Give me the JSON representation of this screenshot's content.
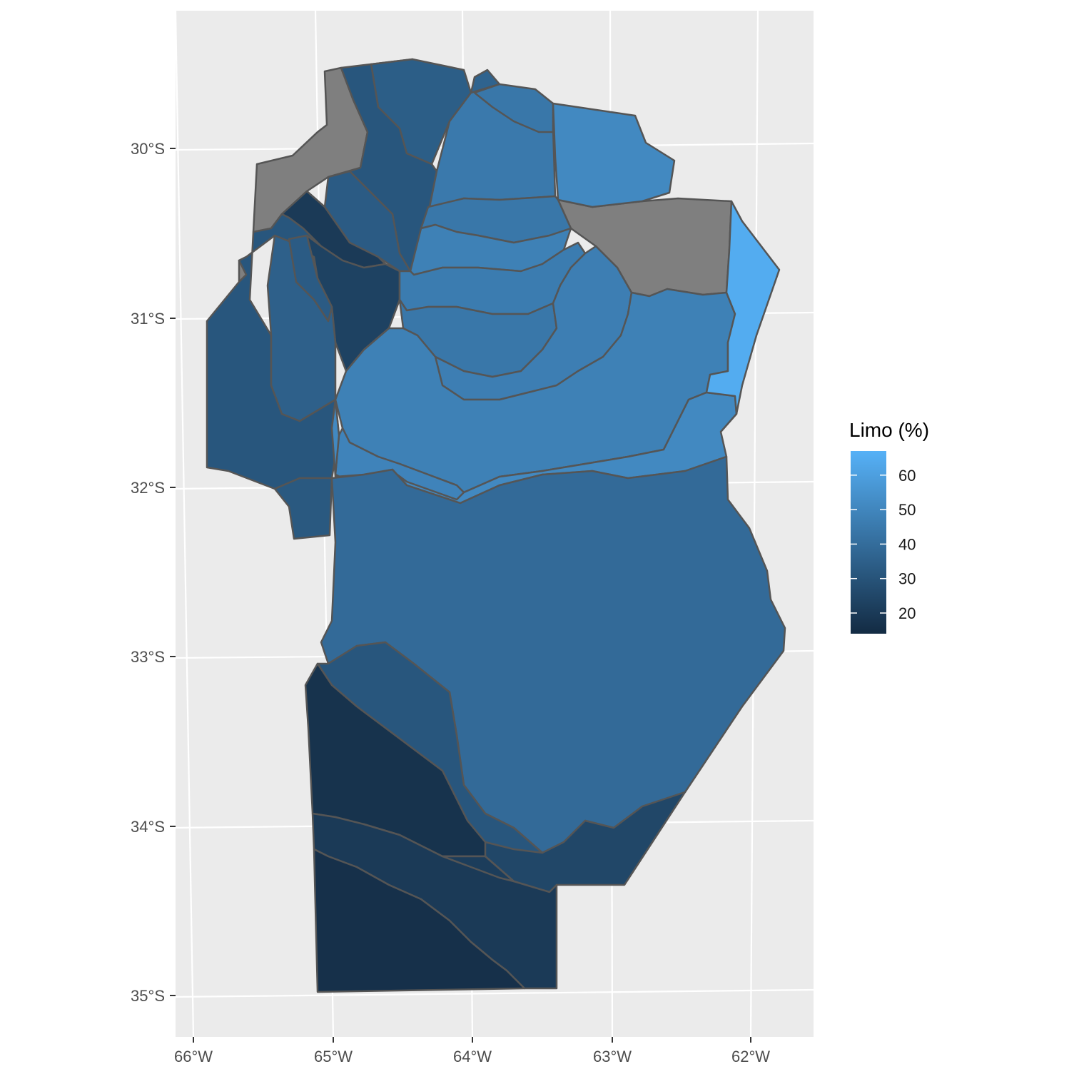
{
  "map": {
    "type": "choropleth",
    "colors": {
      "panel_background": "#EBEBEB",
      "gridline": "#FFFFFF",
      "region_border": "#555555",
      "no_data": "#7F7F7F",
      "scale_low": "#132B43",
      "scale_high": "#56B1F7"
    },
    "axis": {
      "y_ticks": [
        "30°S",
        "31°S",
        "32°S",
        "33°S",
        "34°S",
        "35°S"
      ],
      "x_ticks": [
        "66°W",
        "65°W",
        "64°W",
        "63°W",
        "62°W"
      ]
    },
    "legend": {
      "title": "Limo (%)",
      "position": "right",
      "range": [
        14,
        67
      ],
      "breaks": [
        20,
        30,
        40,
        50,
        60
      ],
      "break_labels": [
        "20",
        "30",
        "40",
        "50",
        "60"
      ]
    },
    "regions": [
      {
        "id": "r01",
        "limo": null
      },
      {
        "id": "r02",
        "limo": null
      },
      {
        "id": "r03",
        "limo": null
      },
      {
        "id": "r04",
        "limo": 15
      },
      {
        "id": "r05",
        "limo": 34
      },
      {
        "id": "r06",
        "limo": 31
      },
      {
        "id": "r07",
        "limo": 36
      },
      {
        "id": "r08",
        "limo": 33
      },
      {
        "id": "r09",
        "limo": 31
      },
      {
        "id": "r10",
        "limo": 20
      },
      {
        "id": "r11",
        "limo": 23
      },
      {
        "id": "r12",
        "limo": 35
      },
      {
        "id": "r13",
        "limo": 33
      },
      {
        "id": "r14",
        "limo": 32
      },
      {
        "id": "r15",
        "limo": 45
      },
      {
        "id": "r16",
        "limo": 44
      },
      {
        "id": "r17",
        "limo": 51
      },
      {
        "id": "r18",
        "limo": 44
      },
      {
        "id": "r19",
        "limo": 48
      },
      {
        "id": "r20",
        "limo": 46
      },
      {
        "id": "r21",
        "limo": 44
      },
      {
        "id": "r22",
        "limo": 47
      },
      {
        "id": "r23",
        "limo": 48
      },
      {
        "id": "r24",
        "limo": 49
      },
      {
        "id": "r25",
        "limo": 51
      },
      {
        "id": "r26",
        "limo": 65
      },
      {
        "id": "r27",
        "limo": 39
      },
      {
        "id": "r28",
        "limo": 25
      },
      {
        "id": "r29",
        "limo": 31
      },
      {
        "id": "r30",
        "limo": 17
      },
      {
        "id": "r31",
        "limo": 20
      },
      {
        "id": "r32",
        "limo": 16
      },
      {
        "id": "r33",
        "limo": 21
      }
    ]
  }
}
